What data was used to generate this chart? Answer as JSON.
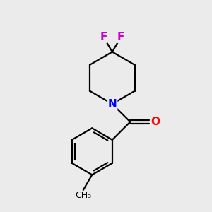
{
  "bg_color": "#ebebeb",
  "atom_colors": {
    "N": "#0000ff",
    "O": "#ff0000",
    "F": "#cc00cc",
    "C": "#000000"
  },
  "font_size_atom": 11,
  "lw": 1.6
}
